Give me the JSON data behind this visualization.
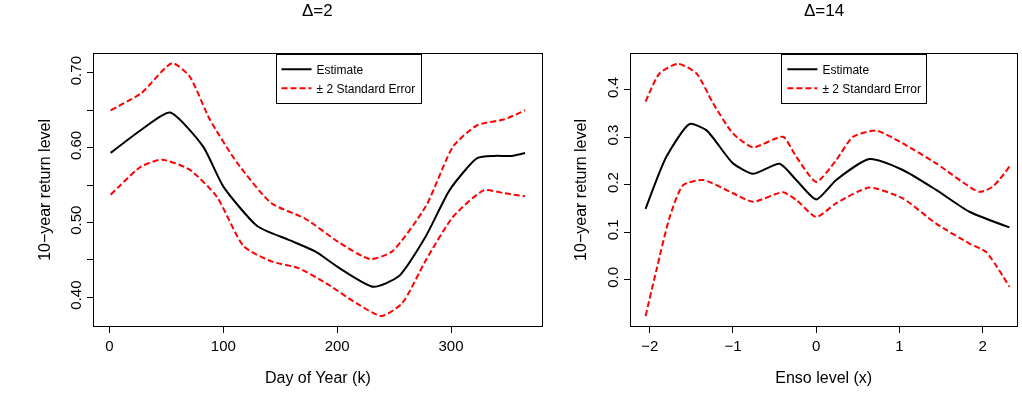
{
  "chart_data": [
    {
      "type": "line",
      "title": "Δ=2",
      "xlabel": "Day of Year (k)",
      "ylabel": "10−year return level",
      "xlim": [
        -13.6,
        379.6
      ],
      "xticks": [
        0,
        100,
        200,
        300
      ],
      "ylim": [
        0.3615,
        0.7255
      ],
      "yticks": [
        {
          "value": 0.4,
          "label": "0.40"
        },
        {
          "value": 0.45,
          "label": null
        },
        {
          "value": 0.5,
          "label": "0.50"
        },
        {
          "value": 0.55,
          "label": null
        },
        {
          "value": 0.6,
          "label": "0.60"
        },
        {
          "value": 0.65,
          "label": null
        },
        {
          "value": 0.7,
          "label": "0.70"
        }
      ],
      "legend": "top",
      "marker": "none",
      "series": [
        {
          "name": "Estimate",
          "color": "#000000",
          "line_style": "solid",
          "x": [
            1,
            28,
            53,
            82,
            100,
            130,
            157,
            181,
            202,
            232,
            254,
            278,
            299,
            323,
            338,
            353,
            365
          ],
          "values": [
            0.593,
            0.624,
            0.647,
            0.602,
            0.548,
            0.495,
            0.477,
            0.461,
            0.439,
            0.414,
            0.428,
            0.482,
            0.544,
            0.586,
            0.589,
            0.589,
            0.593
          ]
        },
        {
          "name": "± 2 Standard Error",
          "color": "#ff0000",
          "line_style": "dashed",
          "x": [
            1,
            28,
            55,
            70,
            88,
            112,
            142,
            172,
            202,
            229,
            248,
            278,
            302,
            323,
            347,
            365
          ],
          "values": [
            0.65,
            0.673,
            0.713,
            0.696,
            0.638,
            0.58,
            0.526,
            0.505,
            0.473,
            0.451,
            0.461,
            0.522,
            0.602,
            0.63,
            0.638,
            0.65
          ]
        },
        {
          "color": "#ff0000",
          "line_style": "dashed",
          "x": [
            1,
            28,
            46,
            70,
            94,
            118,
            142,
            166,
            190,
            217,
            239,
            257,
            278,
            302,
            329,
            347,
            365
          ],
          "values": [
            0.537,
            0.575,
            0.584,
            0.571,
            0.535,
            0.468,
            0.448,
            0.439,
            0.419,
            0.392,
            0.375,
            0.392,
            0.45,
            0.508,
            0.543,
            0.539,
            0.535
          ]
        }
      ]
    },
    {
      "type": "line",
      "title": "Δ=14",
      "xlabel": "Enso level (x)",
      "ylabel": "10−year return level",
      "xlim": [
        -2.23,
        2.41
      ],
      "xticks": [
        {
          "value": -2,
          "label": "−2"
        },
        {
          "value": -1,
          "label": "−1"
        },
        0,
        1,
        2
      ],
      "ylim": [
        -0.098,
        0.476
      ],
      "yticks": [
        {
          "value": 0,
          "label": "0.0"
        },
        0.1,
        0.2,
        0.3,
        0.4
      ],
      "legend": "top",
      "marker": "none",
      "series": [
        {
          "name": "Estimate",
          "color": "#000000",
          "line_style": "solid",
          "x": [
            -2.05,
            -1.8,
            -1.52,
            -1.32,
            -1.0,
            -0.76,
            -0.44,
            -0.24,
            0,
            0.24,
            0.64,
            1.04,
            1.44,
            1.84,
            2.32
          ],
          "values": [
            0.149,
            0.259,
            0.328,
            0.315,
            0.245,
            0.223,
            0.244,
            0.21,
            0.169,
            0.21,
            0.254,
            0.231,
            0.189,
            0.143,
            0.11
          ]
        },
        {
          "name": "± 2 Standard Error",
          "color": "#ff0000",
          "line_style": "dashed",
          "x": [
            -2.05,
            -1.88,
            -1.66,
            -1.44,
            -1.24,
            -1.0,
            -0.76,
            -0.4,
            -0.24,
            0,
            0.24,
            0.44,
            0.72,
            1.04,
            1.44,
            1.96,
            2.12,
            2.32
          ],
          "values": [
            0.375,
            0.435,
            0.455,
            0.435,
            0.372,
            0.308,
            0.279,
            0.301,
            0.259,
            0.206,
            0.252,
            0.301,
            0.314,
            0.287,
            0.245,
            0.185,
            0.196,
            0.238
          ]
        },
        {
          "color": "#ff0000",
          "line_style": "dashed",
          "x": [
            -2.05,
            -1.92,
            -1.76,
            -1.6,
            -1.36,
            -1.0,
            -0.76,
            -0.4,
            -0.24,
            0,
            0.24,
            0.64,
            1.04,
            1.44,
            1.84,
            2.04,
            2.32
          ],
          "values": [
            -0.077,
            0.02,
            0.132,
            0.199,
            0.21,
            0.182,
            0.164,
            0.184,
            0.168,
            0.132,
            0.161,
            0.194,
            0.171,
            0.118,
            0.076,
            0.058,
            -0.015
          ]
        }
      ]
    }
  ]
}
